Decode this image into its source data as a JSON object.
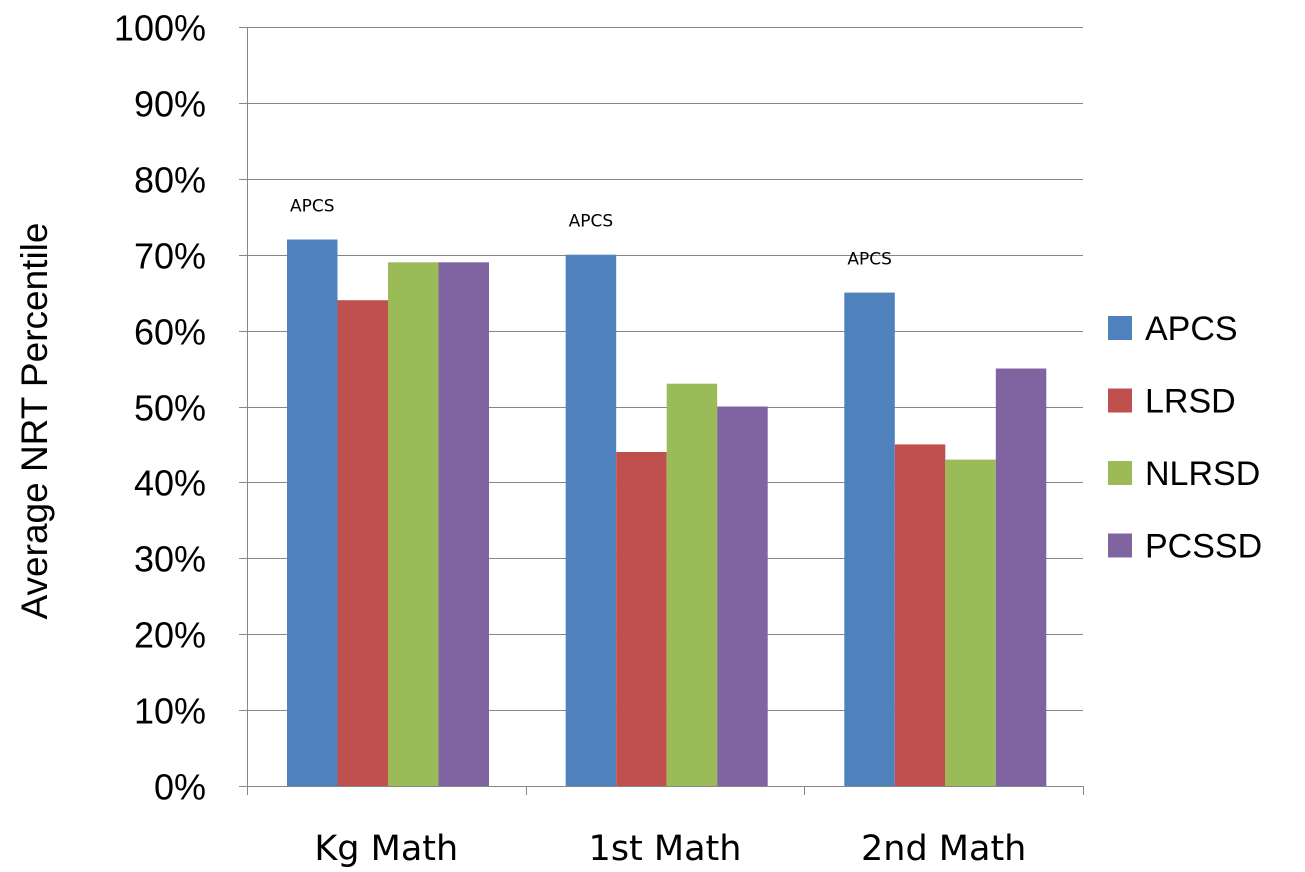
{
  "chart_data": {
    "type": "bar",
    "title": "",
    "xlabel": "",
    "ylabel": "Average NRT Percentile",
    "ylim": [
      0,
      100
    ],
    "y_ticks": [
      "0%",
      "10%",
      "20%",
      "30%",
      "40%",
      "50%",
      "60%",
      "70%",
      "80%",
      "90%",
      "100%"
    ],
    "grid": true,
    "legend_position": "right",
    "categories": [
      "Kg Math",
      "1st Math",
      "2nd Math"
    ],
    "series": [
      {
        "name": "APCS",
        "color": "#4F81BD",
        "values": [
          72,
          70,
          65
        ]
      },
      {
        "name": "LRSD",
        "color": "#C0504D",
        "values": [
          64,
          44,
          45
        ]
      },
      {
        "name": "NLRSD",
        "color": "#9BBB59",
        "values": [
          69,
          53,
          43
        ]
      },
      {
        "name": "PCSSD",
        "color": "#8064A2",
        "values": [
          69,
          50,
          55
        ]
      }
    ],
    "annotations": [
      {
        "text": "APCS",
        "category": "Kg Math",
        "value": 76.5
      },
      {
        "text": "APCS",
        "category": "1st Math",
        "value": 74.5
      },
      {
        "text": "APCS",
        "category": "2nd Math",
        "value": 69.5
      }
    ]
  }
}
